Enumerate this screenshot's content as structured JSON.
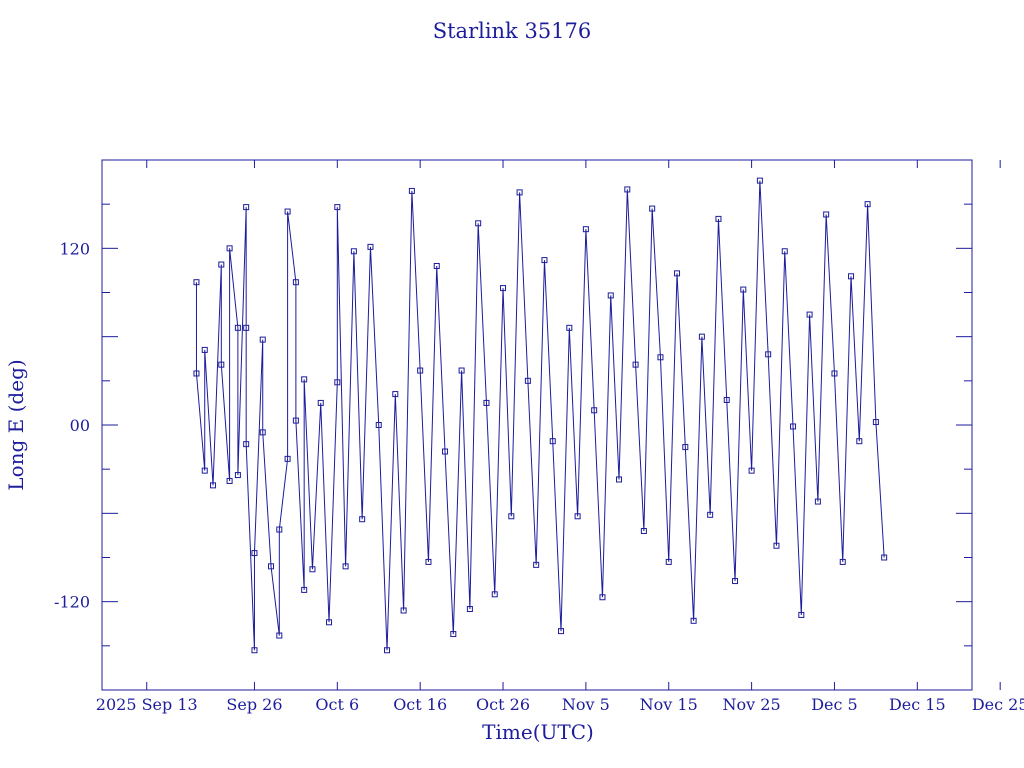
{
  "chart_data": {
    "type": "line",
    "title": "Starlink 35176",
    "xlabel": "Time(UTC)",
    "ylabel": "Long E (deg)",
    "x_start_date": "2025-09-13",
    "x_tick_labels": [
      "2025 Sep 13",
      "Sep 26",
      "Oct 6",
      "Oct 16",
      "Oct 26",
      "Nov 5",
      "Nov 15",
      "Nov 25",
      "Dec 5",
      "Dec 15",
      "Dec 25"
    ],
    "y_tick_labels": [
      "120",
      "00",
      "-120"
    ],
    "ylim": [
      -180,
      180
    ],
    "series": [
      {
        "name": "",
        "points": [
          {
            "x": "2025-09-19",
            "y": 97
          },
          {
            "x": "2025-09-19",
            "y": 35
          },
          {
            "x": "2025-09-20",
            "y": -31
          },
          {
            "x": "2025-09-20",
            "y": 51
          },
          {
            "x": "2025-09-21",
            "y": -41
          },
          {
            "x": "2025-09-22",
            "y": 109
          },
          {
            "x": "2025-09-22",
            "y": 41
          },
          {
            "x": "2025-09-23",
            "y": -38
          },
          {
            "x": "2025-09-23",
            "y": 120
          },
          {
            "x": "2025-09-24",
            "y": 66
          },
          {
            "x": "2025-09-24",
            "y": -34
          },
          {
            "x": "2025-09-25",
            "y": 148
          },
          {
            "x": "2025-09-25",
            "y": 66
          },
          {
            "x": "2025-09-25",
            "y": -13
          },
          {
            "x": "2025-09-26",
            "y": -153
          },
          {
            "x": "2025-09-26",
            "y": -87
          },
          {
            "x": "2025-09-27",
            "y": 58
          },
          {
            "x": "2025-09-27",
            "y": -5
          },
          {
            "x": "2025-09-28",
            "y": -96
          },
          {
            "x": "2025-09-29",
            "y": -143
          },
          {
            "x": "2025-09-29",
            "y": -71
          },
          {
            "x": "2025-09-30",
            "y": -23
          },
          {
            "x": "2025-09-30",
            "y": 145
          },
          {
            "x": "2025-10-01",
            "y": 97
          },
          {
            "x": "2025-10-01",
            "y": 3
          },
          {
            "x": "2025-10-02",
            "y": -112
          },
          {
            "x": "2025-10-02",
            "y": 31
          },
          {
            "x": "2025-10-03",
            "y": -98
          },
          {
            "x": "2025-10-04",
            "y": 15
          },
          {
            "x": "2025-10-05",
            "y": -134
          },
          {
            "x": "2025-10-06",
            "y": 29
          },
          {
            "x": "2025-10-06",
            "y": 148
          },
          {
            "x": "2025-10-07",
            "y": -96
          },
          {
            "x": "2025-10-08",
            "y": 118
          },
          {
            "x": "2025-10-09",
            "y": -64
          },
          {
            "x": "2025-10-10",
            "y": 121
          },
          {
            "x": "2025-10-11",
            "y": 0
          },
          {
            "x": "2025-10-12",
            "y": -153
          },
          {
            "x": "2025-10-13",
            "y": 21
          },
          {
            "x": "2025-10-14",
            "y": -126
          },
          {
            "x": "2025-10-15",
            "y": 159
          },
          {
            "x": "2025-10-16",
            "y": 37
          },
          {
            "x": "2025-10-17",
            "y": -93
          },
          {
            "x": "2025-10-18",
            "y": 108
          },
          {
            "x": "2025-10-19",
            "y": -18
          },
          {
            "x": "2025-10-20",
            "y": -142
          },
          {
            "x": "2025-10-21",
            "y": 37
          },
          {
            "x": "2025-10-22",
            "y": -125
          },
          {
            "x": "2025-10-23",
            "y": 137
          },
          {
            "x": "2025-10-24",
            "y": 15
          },
          {
            "x": "2025-10-25",
            "y": -115
          },
          {
            "x": "2025-10-26",
            "y": 93
          },
          {
            "x": "2025-10-27",
            "y": -62
          },
          {
            "x": "2025-10-28",
            "y": 158
          },
          {
            "x": "2025-10-29",
            "y": 30
          },
          {
            "x": "2025-10-30",
            "y": -95
          },
          {
            "x": "2025-10-31",
            "y": 112
          },
          {
            "x": "2025-11-01",
            "y": -11
          },
          {
            "x": "2025-11-02",
            "y": -140
          },
          {
            "x": "2025-11-03",
            "y": 66
          },
          {
            "x": "2025-11-04",
            "y": -62
          },
          {
            "x": "2025-11-05",
            "y": 133
          },
          {
            "x": "2025-11-06",
            "y": 10
          },
          {
            "x": "2025-11-07",
            "y": -117
          },
          {
            "x": "2025-11-08",
            "y": 88
          },
          {
            "x": "2025-11-09",
            "y": -37
          },
          {
            "x": "2025-11-10",
            "y": 160
          },
          {
            "x": "2025-11-11",
            "y": 41
          },
          {
            "x": "2025-11-12",
            "y": -72
          },
          {
            "x": "2025-11-13",
            "y": 147
          },
          {
            "x": "2025-11-14",
            "y": 46
          },
          {
            "x": "2025-11-15",
            "y": -93
          },
          {
            "x": "2025-11-16",
            "y": 103
          },
          {
            "x": "2025-11-17",
            "y": -15
          },
          {
            "x": "2025-11-18",
            "y": -133
          },
          {
            "x": "2025-11-19",
            "y": 60
          },
          {
            "x": "2025-11-20",
            "y": -61
          },
          {
            "x": "2025-11-21",
            "y": 140
          },
          {
            "x": "2025-11-22",
            "y": 17
          },
          {
            "x": "2025-11-23",
            "y": -106
          },
          {
            "x": "2025-11-24",
            "y": 92
          },
          {
            "x": "2025-11-25",
            "y": -31
          },
          {
            "x": "2025-11-26",
            "y": 166
          },
          {
            "x": "2025-11-27",
            "y": 48
          },
          {
            "x": "2025-11-28",
            "y": -82
          },
          {
            "x": "2025-11-29",
            "y": 118
          },
          {
            "x": "2025-11-30",
            "y": -1
          },
          {
            "x": "2025-12-01",
            "y": -129
          },
          {
            "x": "2025-12-02",
            "y": 75
          },
          {
            "x": "2025-12-03",
            "y": -52
          },
          {
            "x": "2025-12-04",
            "y": 143
          },
          {
            "x": "2025-12-05",
            "y": 35
          },
          {
            "x": "2025-12-06",
            "y": -93
          },
          {
            "x": "2025-12-07",
            "y": 101
          },
          {
            "x": "2025-12-08",
            "y": -11
          },
          {
            "x": "2025-12-09",
            "y": 150
          },
          {
            "x": "2025-12-10",
            "y": 2
          },
          {
            "x": "2025-12-11",
            "y": -90
          }
        ]
      }
    ]
  }
}
